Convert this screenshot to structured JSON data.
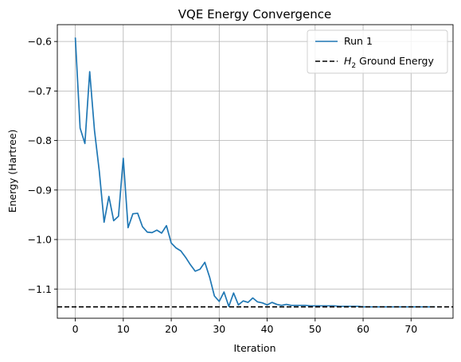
{
  "chart_data": {
    "type": "line",
    "title": "VQE Energy Convergence",
    "xlabel": "Iteration",
    "ylabel": "Energy (Hartree)",
    "xlim": [
      -3.75,
      78.75
    ],
    "ylim": [
      -1.159,
      -0.566
    ],
    "xticks": [
      0,
      10,
      20,
      30,
      40,
      50,
      60,
      70
    ],
    "yticks": [
      -0.6,
      -0.7,
      -0.8,
      -0.9,
      -1.0,
      -1.1
    ],
    "xtick_labels": [
      "0",
      "10",
      "20",
      "30",
      "40",
      "50",
      "60",
      "70"
    ],
    "ytick_labels": [
      "−0.6",
      "−0.7",
      "−0.8",
      "−0.9",
      "−1.0",
      "−1.1"
    ],
    "grid": true,
    "legend_position": "top-right",
    "series": [
      {
        "name": "Run 1",
        "color": "#1f77b4",
        "style": "solid",
        "x": [
          0,
          1,
          2,
          3,
          4,
          5,
          6,
          7,
          8,
          9,
          10,
          11,
          12,
          13,
          14,
          15,
          16,
          17,
          18,
          19,
          20,
          21,
          22,
          23,
          24,
          25,
          26,
          27,
          28,
          29,
          30,
          31,
          32,
          33,
          34,
          35,
          36,
          37,
          38,
          39,
          40,
          41,
          42,
          43,
          44,
          45,
          46,
          47,
          48,
          49,
          50,
          51,
          52,
          53,
          54,
          55,
          56,
          57,
          58,
          59,
          60,
          61,
          62,
          63,
          64,
          65,
          66,
          67,
          68,
          69,
          70,
          71,
          72,
          73,
          74,
          75
        ],
        "y": [
          -0.592,
          -0.775,
          -0.806,
          -0.661,
          -0.78,
          -0.862,
          -0.965,
          -0.913,
          -0.962,
          -0.953,
          -0.836,
          -0.976,
          -0.948,
          -0.947,
          -0.974,
          -0.985,
          -0.986,
          -0.981,
          -0.987,
          -0.972,
          -1.007,
          -1.017,
          -1.023,
          -1.036,
          -1.051,
          -1.064,
          -1.06,
          -1.046,
          -1.076,
          -1.114,
          -1.125,
          -1.106,
          -1.135,
          -1.108,
          -1.132,
          -1.124,
          -1.127,
          -1.118,
          -1.126,
          -1.128,
          -1.132,
          -1.127,
          -1.131,
          -1.133,
          -1.131,
          -1.133,
          -1.133,
          -1.133,
          -1.133,
          -1.134,
          -1.134,
          -1.134,
          -1.134,
          -1.134,
          -1.134,
          -1.135,
          -1.135,
          -1.135,
          -1.135,
          -1.135,
          -1.136,
          -1.136,
          -1.136,
          -1.136,
          -1.136,
          -1.136,
          -1.136,
          -1.136,
          -1.136,
          -1.136,
          -1.136,
          -1.136,
          -1.136,
          -1.136,
          -1.136,
          -1.136
        ]
      },
      {
        "name": "Ground Energy",
        "label_math": "H",
        "label_sub": "2",
        "color": "#000000",
        "style": "dashed",
        "y_const": -1.136
      }
    ]
  }
}
